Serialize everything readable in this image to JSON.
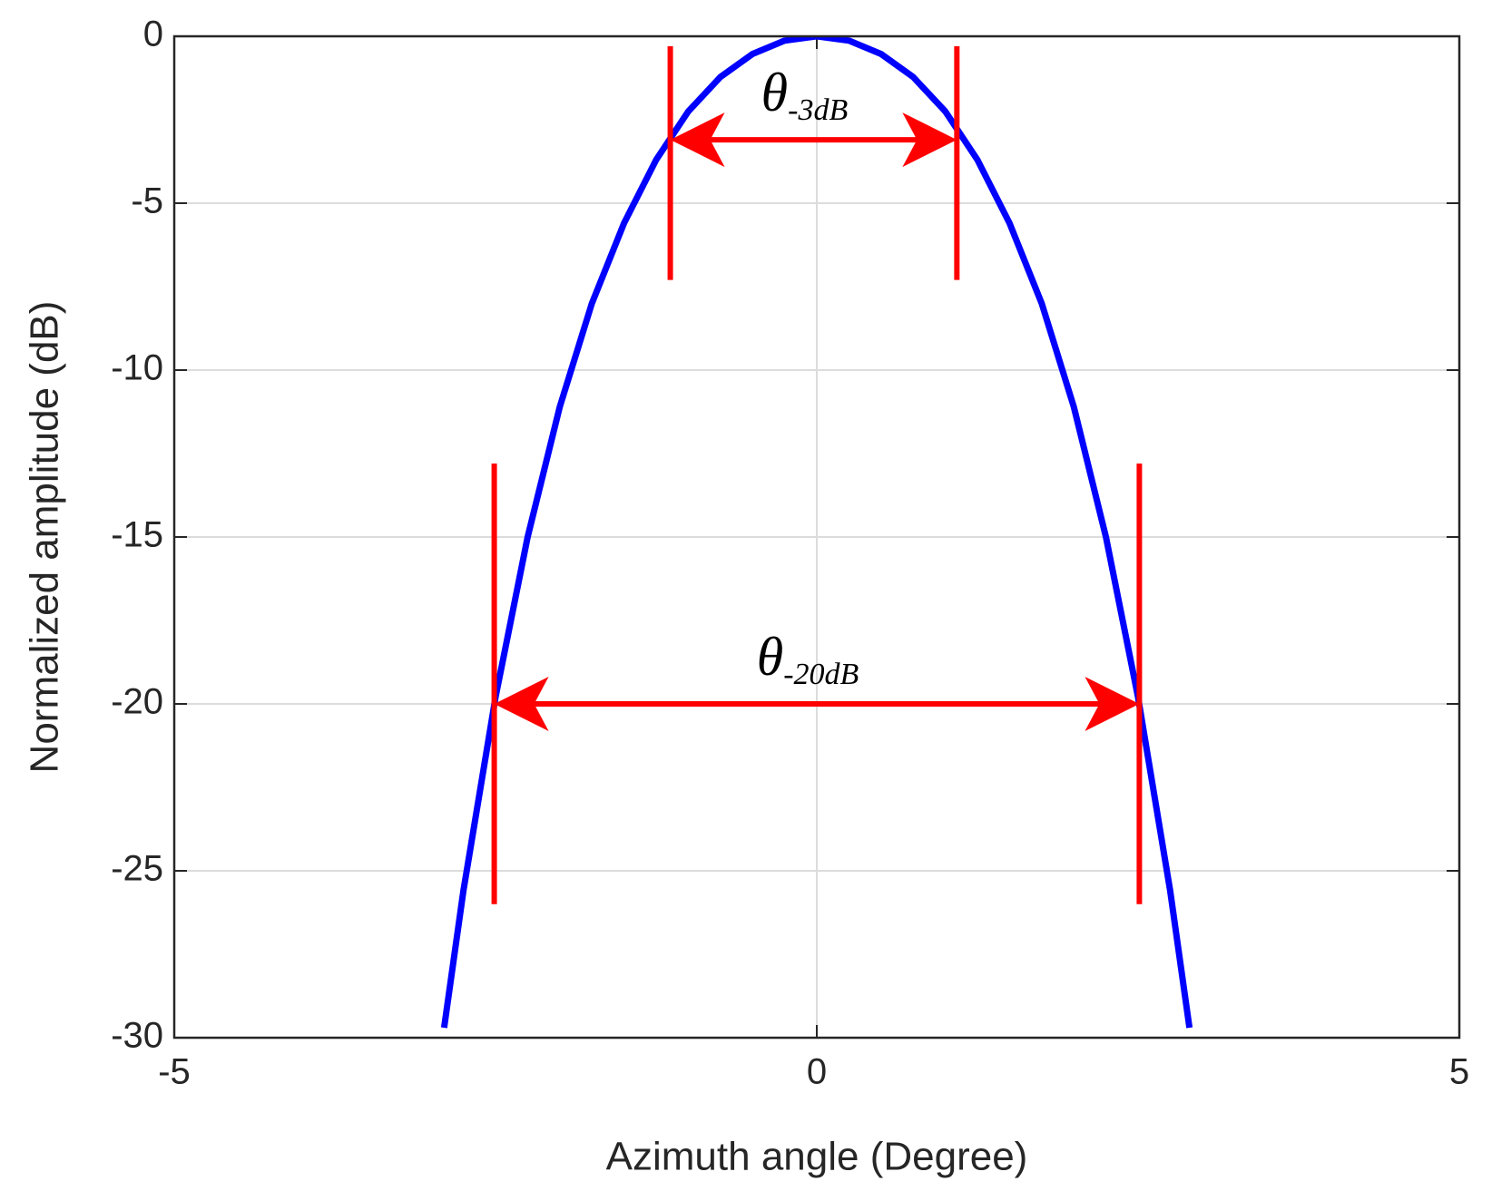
{
  "chart_data": {
    "type": "line",
    "xlabel": "Azimuth angle (Degree)",
    "ylabel": "Normalized amplitude (dB)",
    "x": [
      -2.9,
      -2.75,
      -2.5,
      -2.25,
      -2,
      -1.75,
      -1.5,
      -1.25,
      -1,
      -0.75,
      -0.5,
      -0.25,
      0,
      0.25,
      0.5,
      0.75,
      1,
      1.25,
      1.5,
      1.75,
      2,
      2.25,
      2.5,
      2.75,
      2.9
    ],
    "series": [
      {
        "color": "#0000ff",
        "values": [
          -29.7,
          -25.6,
          -19.8,
          -15.0,
          -11.1,
          -8.0,
          -5.6,
          -3.7,
          -2.25,
          -1.22,
          -0.53,
          -0.13,
          0,
          -0.13,
          -0.53,
          -1.22,
          -2.25,
          -3.7,
          -5.6,
          -8.0,
          -11.1,
          -15.0,
          -19.8,
          -25.6,
          -29.7
        ]
      }
    ],
    "xlim": [
      -5,
      5
    ],
    "xticks": [
      -5,
      0,
      5
    ],
    "ylim": [
      -30,
      0
    ],
    "yticks": [
      -30,
      -25,
      -20,
      -15,
      -10,
      -5,
      0
    ],
    "grid": true,
    "annotations": [
      {
        "text": "θ",
        "subscript": "-3dB",
        "color": "#ff0000",
        "x_from": -1.14,
        "x_to": 1.09,
        "y": -3.1,
        "y_top": -0.3,
        "y_bottom": -7.3
      },
      {
        "text": "θ",
        "subscript": "-20dB",
        "color": "#ff0000",
        "x_from": -2.51,
        "x_to": 2.51,
        "y": -20,
        "y_top": -12.8,
        "y_bottom": -26
      }
    ]
  }
}
